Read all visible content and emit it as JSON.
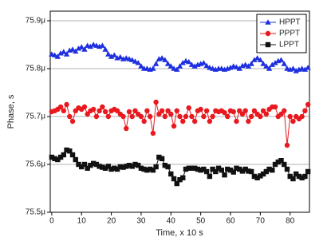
{
  "chart_data": {
    "type": "line",
    "x_label": "Time, x 10 s",
    "y_label": "Phase, s",
    "x": [
      0,
      1,
      2,
      3,
      4,
      5,
      6,
      7,
      8,
      9,
      10,
      11,
      12,
      13,
      14,
      15,
      16,
      17,
      18,
      19,
      20,
      21,
      22,
      23,
      24,
      25,
      26,
      27,
      28,
      29,
      30,
      31,
      32,
      33,
      34,
      35,
      36,
      37,
      38,
      39,
      40,
      41,
      42,
      43,
      44,
      45,
      46,
      47,
      48,
      49,
      50,
      51,
      52,
      53,
      54,
      55,
      56,
      57,
      58,
      59,
      60,
      61,
      62,
      63,
      64,
      65,
      66,
      67,
      68,
      69,
      70,
      71,
      72,
      73,
      74,
      75,
      76,
      77,
      78,
      79,
      80,
      81,
      82,
      83,
      84,
      85,
      86
    ],
    "series": [
      {
        "name": "HPPT",
        "color": "#1e2fe0",
        "marker": "triangle",
        "values": [
          75.83,
          75.828,
          75.825,
          75.832,
          75.835,
          75.83,
          75.838,
          75.84,
          75.836,
          75.842,
          75.845,
          75.84,
          75.848,
          75.846,
          75.85,
          75.848,
          75.846,
          75.848,
          75.84,
          75.83,
          75.825,
          75.828,
          75.822,
          75.824,
          75.82,
          75.822,
          75.82,
          75.818,
          75.815,
          75.812,
          75.805,
          75.8,
          75.8,
          75.798,
          75.8,
          75.81,
          75.82,
          75.822,
          75.818,
          75.81,
          75.805,
          75.8,
          75.798,
          75.805,
          75.812,
          75.816,
          75.814,
          75.808,
          75.805,
          75.808,
          75.81,
          75.812,
          75.806,
          75.802,
          75.8,
          75.798,
          75.8,
          75.8,
          75.798,
          75.8,
          75.802,
          75.805,
          75.803,
          75.8,
          75.806,
          75.808,
          75.805,
          75.81,
          75.818,
          75.822,
          75.818,
          75.81,
          75.805,
          75.8,
          75.808,
          75.812,
          75.816,
          75.818,
          75.81,
          75.8,
          75.798,
          75.8,
          75.795,
          75.798,
          75.8,
          75.798,
          75.802
        ]
      },
      {
        "name": "PPPT",
        "color": "#e8191f",
        "marker": "circle",
        "values": [
          75.71,
          75.712,
          75.715,
          75.72,
          75.712,
          75.725,
          75.7,
          75.69,
          75.712,
          75.718,
          75.715,
          75.72,
          75.705,
          75.712,
          75.715,
          75.7,
          75.712,
          75.72,
          75.71,
          75.7,
          75.712,
          75.715,
          75.712,
          75.705,
          75.7,
          75.675,
          75.71,
          75.7,
          75.712,
          75.705,
          75.7,
          75.69,
          75.712,
          75.7,
          75.665,
          75.73,
          75.705,
          75.712,
          75.7,
          75.712,
          75.705,
          75.68,
          75.712,
          75.7,
          75.69,
          75.7,
          75.718,
          75.7,
          75.69,
          75.712,
          75.715,
          75.7,
          75.712,
          75.69,
          75.7,
          75.712,
          75.71,
          75.712,
          75.708,
          75.7,
          75.712,
          75.71,
          75.69,
          75.712,
          75.705,
          75.712,
          75.69,
          75.7,
          75.712,
          75.705,
          75.7,
          75.712,
          75.705,
          75.715,
          75.72,
          75.72,
          75.7,
          75.705,
          75.712,
          75.64,
          75.7,
          75.69,
          75.7,
          75.695,
          75.7,
          75.712,
          75.725
        ]
      },
      {
        "name": "LPPT",
        "color": "#111111",
        "marker": "square",
        "values": [
          75.615,
          75.612,
          75.61,
          75.615,
          75.62,
          75.63,
          75.628,
          75.62,
          75.61,
          75.6,
          75.595,
          75.6,
          75.592,
          75.598,
          75.602,
          75.6,
          75.596,
          75.594,
          75.592,
          75.596,
          75.59,
          75.592,
          75.59,
          75.595,
          75.594,
          75.596,
          75.598,
          75.596,
          75.6,
          75.598,
          75.592,
          75.59,
          75.588,
          75.59,
          75.588,
          75.595,
          75.615,
          75.612,
          75.598,
          75.595,
          75.58,
          75.57,
          75.56,
          75.568,
          75.572,
          75.59,
          75.592,
          75.592,
          75.592,
          75.59,
          75.588,
          75.59,
          75.585,
          75.575,
          75.59,
          75.585,
          75.592,
          75.588,
          75.578,
          75.59,
          75.588,
          75.584,
          75.592,
          75.59,
          75.586,
          75.59,
          75.586,
          75.585,
          75.575,
          75.572,
          75.576,
          75.58,
          75.585,
          75.59,
          75.588,
          75.6,
          75.605,
          75.608,
          75.6,
          75.59,
          75.575,
          75.57,
          75.58,
          75.575,
          75.572,
          75.575,
          75.585
        ]
      }
    ],
    "xlim": [
      -0.5,
      86.5
    ],
    "xticks": [
      0,
      10,
      20,
      30,
      40,
      50,
      60,
      70,
      80
    ],
    "ylim": [
      75.5,
      75.92
    ],
    "yticks": [
      {
        "value": 75.5,
        "label": "75.5μ"
      },
      {
        "value": 75.6,
        "label": "75.6μ"
      },
      {
        "value": 75.7,
        "label": "75.7μ"
      },
      {
        "value": 75.8,
        "label": "75.8μ"
      },
      {
        "value": 75.9,
        "label": "75.9μ"
      }
    ],
    "grid": true,
    "legend": "top-right"
  }
}
